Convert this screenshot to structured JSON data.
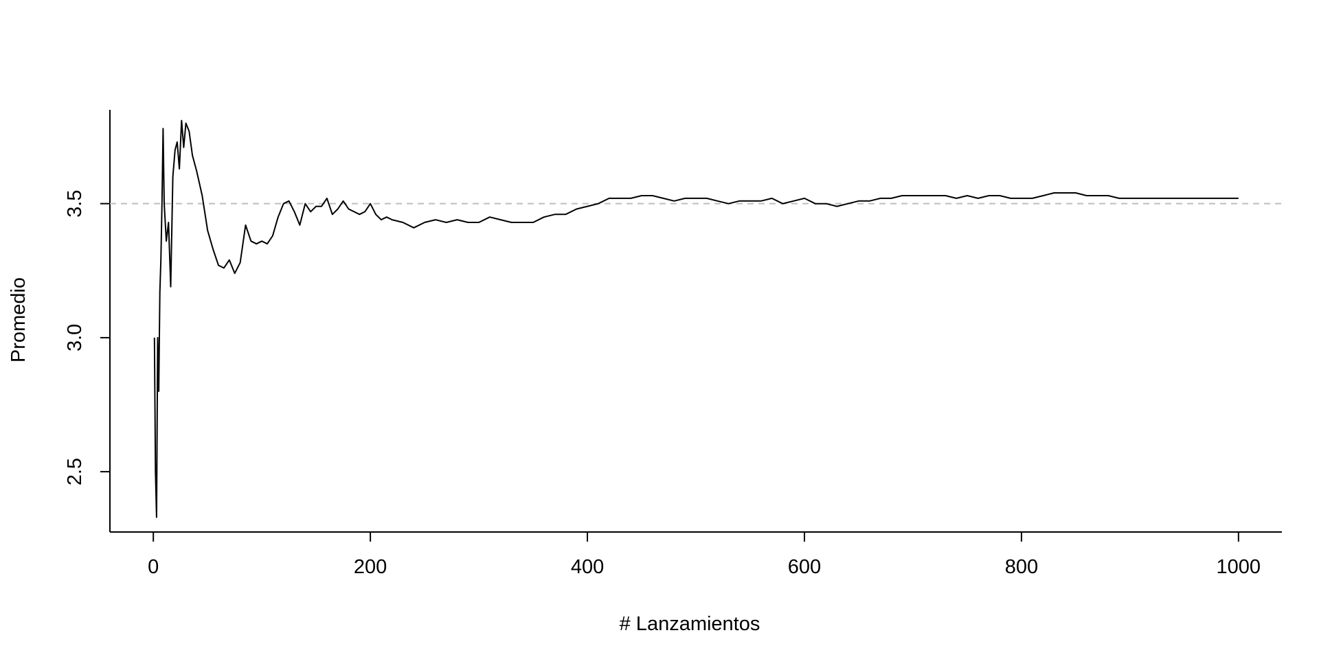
{
  "chart_data": {
    "type": "line",
    "title": "",
    "xlabel": "# Lanzamientos",
    "ylabel": "Promedio",
    "xlim": [
      -40,
      1040
    ],
    "ylim": [
      2.275,
      3.85
    ],
    "x_ticks": [
      0,
      200,
      400,
      600,
      800,
      1000
    ],
    "x_tick_labels": [
      "0",
      "200",
      "400",
      "600",
      "800",
      "1000"
    ],
    "y_ticks": [
      2.5,
      3.0,
      3.5
    ],
    "y_tick_labels": [
      "2.5",
      "3.0",
      "3.5"
    ],
    "grid": false,
    "legend": "none",
    "reference_line": {
      "y": 3.5,
      "style": "dashed",
      "color": "#bebebe"
    },
    "series": [
      {
        "color": "#000000",
        "x": [
          1,
          2,
          3,
          4,
          5,
          6,
          7,
          8,
          9,
          10,
          12,
          14,
          16,
          18,
          20,
          22,
          24,
          26,
          28,
          30,
          33,
          36,
          40,
          45,
          50,
          55,
          60,
          65,
          70,
          75,
          80,
          85,
          90,
          95,
          100,
          105,
          110,
          115,
          120,
          125,
          130,
          135,
          140,
          145,
          150,
          155,
          160,
          165,
          170,
          175,
          180,
          185,
          190,
          195,
          200,
          205,
          210,
          215,
          220,
          230,
          240,
          250,
          260,
          270,
          280,
          290,
          300,
          310,
          320,
          330,
          340,
          350,
          360,
          370,
          380,
          390,
          400,
          410,
          420,
          430,
          440,
          450,
          460,
          470,
          480,
          490,
          500,
          510,
          520,
          530,
          540,
          550,
          560,
          570,
          580,
          590,
          600,
          610,
          620,
          630,
          640,
          650,
          660,
          670,
          680,
          690,
          700,
          710,
          720,
          730,
          740,
          750,
          760,
          770,
          780,
          790,
          800,
          810,
          820,
          830,
          840,
          850,
          860,
          870,
          880,
          890,
          900,
          910,
          920,
          930,
          940,
          950,
          960,
          970,
          980,
          990,
          1000
        ],
        "y": [
          3.0,
          2.5,
          2.33,
          3.0,
          2.8,
          3.17,
          3.29,
          3.5,
          3.78,
          3.5,
          3.36,
          3.43,
          3.19,
          3.6,
          3.7,
          3.73,
          3.63,
          3.81,
          3.71,
          3.8,
          3.77,
          3.68,
          3.62,
          3.53,
          3.4,
          3.33,
          3.27,
          3.26,
          3.29,
          3.24,
          3.28,
          3.42,
          3.36,
          3.35,
          3.36,
          3.35,
          3.38,
          3.45,
          3.5,
          3.51,
          3.47,
          3.42,
          3.5,
          3.47,
          3.49,
          3.49,
          3.52,
          3.46,
          3.48,
          3.51,
          3.48,
          3.47,
          3.46,
          3.47,
          3.5,
          3.46,
          3.44,
          3.45,
          3.44,
          3.43,
          3.41,
          3.43,
          3.44,
          3.43,
          3.44,
          3.43,
          3.43,
          3.45,
          3.44,
          3.43,
          3.43,
          3.43,
          3.45,
          3.46,
          3.46,
          3.48,
          3.49,
          3.5,
          3.52,
          3.52,
          3.52,
          3.53,
          3.53,
          3.52,
          3.51,
          3.52,
          3.52,
          3.52,
          3.51,
          3.5,
          3.51,
          3.51,
          3.51,
          3.52,
          3.5,
          3.51,
          3.52,
          3.5,
          3.5,
          3.49,
          3.5,
          3.51,
          3.51,
          3.52,
          3.52,
          3.53,
          3.53,
          3.53,
          3.53,
          3.53,
          3.52,
          3.53,
          3.52,
          3.53,
          3.53,
          3.52,
          3.52,
          3.52,
          3.53,
          3.54,
          3.54,
          3.54,
          3.53,
          3.53,
          3.53,
          3.52,
          3.52,
          3.52,
          3.52,
          3.52,
          3.52,
          3.52,
          3.52,
          3.52,
          3.52,
          3.52,
          3.52
        ]
      }
    ]
  }
}
